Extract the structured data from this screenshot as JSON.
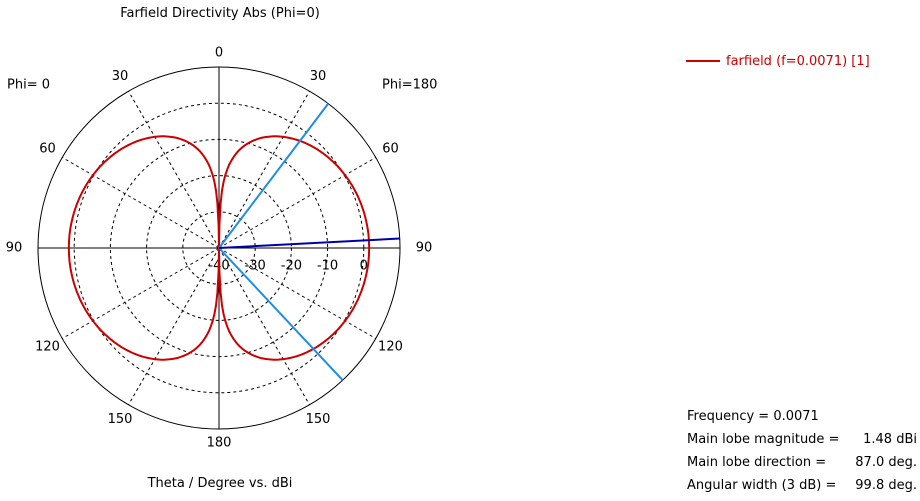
{
  "chart_data": {
    "type": "polar",
    "title": "Farfield Directivity Abs (Phi=0)",
    "xlabel": "Theta / Degree vs. dBi",
    "left_label": "Phi=  0",
    "right_label": "Phi=180",
    "angle_ticks": [
      {
        "angle": 0,
        "label": "0"
      },
      {
        "angle": -30,
        "label": "30"
      },
      {
        "angle": 30,
        "label": "30"
      },
      {
        "angle": -60,
        "label": "60"
      },
      {
        "angle": 60,
        "label": "60"
      },
      {
        "angle": -90,
        "label": "90"
      },
      {
        "angle": 90,
        "label": "90"
      },
      {
        "angle": -120,
        "label": "120"
      },
      {
        "angle": 120,
        "label": "120"
      },
      {
        "angle": -150,
        "label": "150"
      },
      {
        "angle": 150,
        "label": "150"
      },
      {
        "angle": 180,
        "label": "180"
      }
    ],
    "radial_range_dbi": [
      -40,
      10
    ],
    "radial_ticks": [
      {
        "value": -40,
        "label": "-40"
      },
      {
        "value": -30,
        "label": "-30"
      },
      {
        "value": -20,
        "label": "-20"
      },
      {
        "value": -10,
        "label": "-10"
      },
      {
        "value": 0,
        "label": "0"
      }
    ],
    "grid": true,
    "legend_position": "top-right",
    "series": [
      {
        "name": "farfield (f=0.0071) [1]",
        "color": "#cc0000",
        "model": "dipole",
        "peak_dbi": 1.48
      }
    ],
    "main_lobe_direction_deg": 87.0,
    "beam_half_width_deg": 49.9,
    "colors": {
      "main_lobe": "#0000aa",
      "beamwidth": "#1e8ce6",
      "grid": "#000000"
    }
  },
  "info": {
    "frequency_label": "Frequency = 0.0071",
    "magnitude_label": "Main lobe magnitude =",
    "magnitude_value": "1.48 dBi",
    "direction_label": "Main lobe direction =",
    "direction_value": "87.0 deg.",
    "width_label": "Angular width (3 dB) =",
    "width_value": "99.8 deg."
  }
}
